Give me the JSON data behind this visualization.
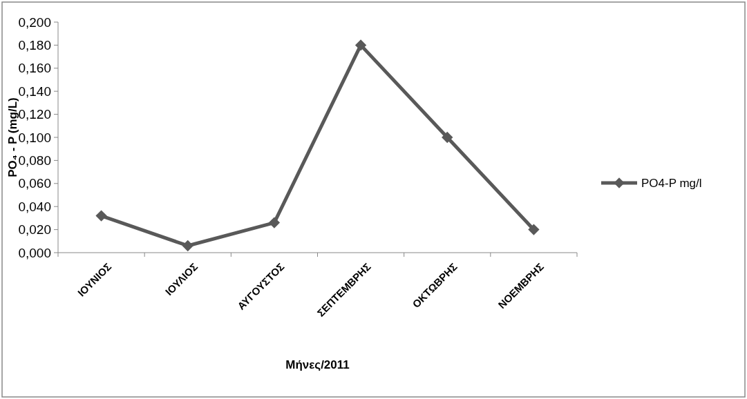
{
  "chart_data": {
    "type": "line",
    "xlabel": "Μήνες/2011",
    "ylabel": "PO₄ - P (mg/L)",
    "categories": [
      "ΙΟΥΝΙΟΣ",
      "ΙΟΥΛΙΟΣ",
      "ΑΥΓΟΥΣΤΟΣ",
      "ΣΕΠΤΕΜΒΡΗΣ",
      "ΟΚΤΩΒΡΗΣ",
      "ΝΟΕΜΒΡΗΣ"
    ],
    "series": [
      {
        "name": "PO4-P mg/l",
        "color": "#595959",
        "values": [
          0.032,
          0.006,
          0.026,
          0.18,
          0.1,
          0.02
        ]
      }
    ],
    "ylim": [
      0,
      0.2
    ],
    "yticks": [
      {
        "value": 0,
        "label": "0,000"
      },
      {
        "value": 0.02,
        "label": "0,020"
      },
      {
        "value": 0.04,
        "label": "0,040"
      },
      {
        "value": 0.06,
        "label": "0,060"
      },
      {
        "value": 0.08,
        "label": "0,080"
      },
      {
        "value": 0.1,
        "label": "0,100"
      },
      {
        "value": 0.12,
        "label": "0,120"
      },
      {
        "value": 0.14,
        "label": "0,140"
      },
      {
        "value": 0.16,
        "label": "0,160"
      },
      {
        "value": 0.18,
        "label": "0,180"
      },
      {
        "value": 0.2,
        "label": "0,200"
      }
    ],
    "legend": "right",
    "marker": "diamond",
    "line_style": "solid",
    "grid": false
  }
}
